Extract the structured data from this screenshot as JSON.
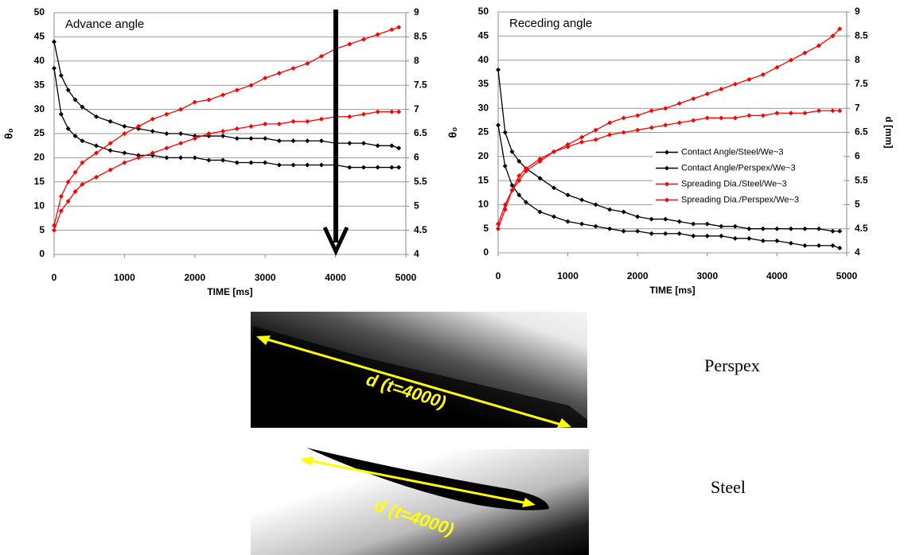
{
  "chart_data": [
    {
      "type": "line",
      "title": "Advance angle",
      "xlabel": "TIME [ms]",
      "ylabel": "θ₀",
      "x": [
        0,
        100,
        200,
        300,
        400,
        600,
        800,
        1000,
        1200,
        1400,
        1600,
        1800,
        2000,
        2200,
        2400,
        2600,
        2800,
        3000,
        3200,
        3400,
        3600,
        3800,
        4000,
        4200,
        4400,
        4600,
        4800,
        4900
      ],
      "xlim": [
        0,
        5000
      ],
      "xticks": [
        0,
        1000,
        2000,
        3000,
        4000,
        5000
      ],
      "ylim": [
        0,
        50
      ],
      "yticks": [
        0,
        5,
        10,
        15,
        20,
        25,
        30,
        35,
        40,
        45,
        50
      ],
      "y2lim": [
        4,
        9
      ],
      "y2ticks": [
        4,
        4.5,
        5,
        5.5,
        6,
        6.5,
        7,
        7.5,
        8,
        8.5,
        9
      ],
      "grid": true,
      "series": [
        {
          "color": "#000000",
          "values": [
            44,
            37,
            34,
            32,
            30.5,
            28.5,
            27.5,
            26.5,
            26,
            25.5,
            25,
            25,
            24.5,
            24.5,
            24.5,
            24,
            24,
            24,
            23.5,
            23.5,
            23.5,
            23.5,
            23,
            23,
            23,
            22.5,
            22.5,
            22
          ]
        },
        {
          "color": "#000000",
          "values": [
            38.5,
            29,
            26,
            24.5,
            23.5,
            22.5,
            21.5,
            21,
            20.5,
            20.5,
            20,
            20,
            20,
            19.5,
            19.5,
            19,
            19,
            19,
            18.5,
            18.5,
            18.5,
            18.5,
            18.5,
            18,
            18,
            18,
            18,
            18
          ]
        },
        {
          "color": "#ff0000",
          "axis": "y2",
          "values": [
            4.5,
            4.9,
            5.1,
            5.3,
            5.45,
            5.6,
            5.75,
            5.9,
            6,
            6.1,
            6.2,
            6.3,
            6.4,
            6.5,
            6.55,
            6.6,
            6.65,
            6.7,
            6.7,
            6.75,
            6.75,
            6.8,
            6.85,
            6.85,
            6.9,
            6.95,
            6.95,
            6.95
          ]
        },
        {
          "color": "#ff0000",
          "axis": "y2",
          "values": [
            4.6,
            5.2,
            5.5,
            5.7,
            5.9,
            6.1,
            6.3,
            6.5,
            6.65,
            6.8,
            6.9,
            7,
            7.15,
            7.2,
            7.3,
            7.4,
            7.5,
            7.65,
            7.75,
            7.85,
            7.95,
            8.1,
            8.25,
            8.35,
            8.45,
            8.55,
            8.65,
            8.7
          ]
        }
      ]
    },
    {
      "type": "line",
      "title": "Receding angle",
      "xlabel": "TIME [ms]",
      "ylabel": "θ₀",
      "y2label": "d [mm]",
      "x": [
        0,
        100,
        200,
        300,
        400,
        600,
        800,
        1000,
        1200,
        1400,
        1600,
        1800,
        2000,
        2200,
        2400,
        2600,
        2800,
        3000,
        3200,
        3400,
        3600,
        3800,
        4000,
        4200,
        4400,
        4600,
        4800,
        4900
      ],
      "xlim": [
        0,
        5000
      ],
      "xticks": [
        0,
        1000,
        2000,
        3000,
        4000,
        5000
      ],
      "ylim": [
        0,
        50
      ],
      "yticks": [
        0,
        5,
        10,
        15,
        20,
        25,
        30,
        35,
        40,
        45,
        50
      ],
      "y2lim": [
        4,
        9
      ],
      "y2ticks": [
        4,
        4.5,
        5,
        5.5,
        6,
        6.5,
        7,
        7.5,
        8,
        8.5,
        9
      ],
      "grid": true,
      "legend": "right",
      "series": [
        {
          "name": "Contact Angle/Steel/We~3",
          "color": "#000000",
          "values": [
            38,
            25,
            21,
            19,
            17.5,
            15.5,
            13.5,
            12,
            11,
            10,
            9,
            8.5,
            7.5,
            7,
            7,
            6.5,
            6,
            6,
            5.5,
            5.5,
            5,
            5,
            5,
            5,
            5,
            5,
            4.5,
            4.5
          ]
        },
        {
          "name": "Contact Angle/Perspex/We~3",
          "color": "#000000",
          "values": [
            26.5,
            18,
            14,
            12,
            10.5,
            8.5,
            7.5,
            6.5,
            6,
            5.5,
            5,
            4.5,
            4.5,
            4,
            4,
            4,
            3.5,
            3.5,
            3.5,
            3,
            3,
            2.5,
            2.5,
            2,
            1.5,
            1.5,
            1.5,
            1
          ]
        },
        {
          "name": "Spreading Dia./Steel/We~3",
          "color": "#ff0000",
          "axis": "y2",
          "values": [
            4.5,
            4.9,
            5.3,
            5.6,
            5.75,
            5.95,
            6.1,
            6.2,
            6.3,
            6.35,
            6.45,
            6.5,
            6.55,
            6.6,
            6.65,
            6.7,
            6.75,
            6.8,
            6.8,
            6.8,
            6.85,
            6.85,
            6.9,
            6.9,
            6.9,
            6.95,
            6.95,
            6.95
          ]
        },
        {
          "name": "Spreading Dia./Perspex/We~3",
          "color": "#ff0000",
          "axis": "y2",
          "values": [
            4.6,
            5,
            5.3,
            5.5,
            5.7,
            5.9,
            6.1,
            6.25,
            6.4,
            6.55,
            6.7,
            6.8,
            6.85,
            6.95,
            7,
            7.1,
            7.2,
            7.3,
            7.4,
            7.5,
            7.6,
            7.7,
            7.85,
            8,
            8.15,
            8.3,
            8.5,
            8.65
          ]
        }
      ]
    }
  ],
  "photos": [
    {
      "annotation": "d (t=4000)",
      "label": "Perspex"
    },
    {
      "annotation": "d (t=4000)",
      "label": "Steel"
    }
  ]
}
